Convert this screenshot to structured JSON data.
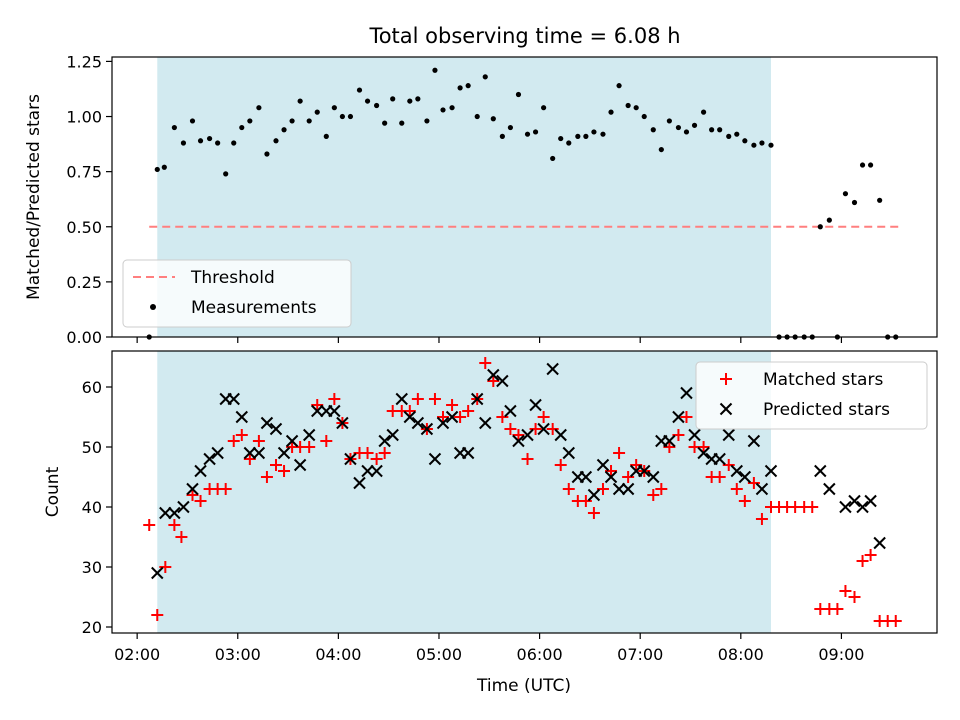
{
  "title": "Total observing time = 6.08 h",
  "colors": {
    "shade": "#a6d5e2",
    "matched": "#ff0000",
    "predicted": "#000000",
    "threshold": "#ff7f7f",
    "measurements": "#000000"
  },
  "x_axis": {
    "label": "Time (UTC)",
    "range_hours": [
      1.75,
      9.95
    ],
    "ticks": [
      {
        "hour": 2,
        "label": "02:00"
      },
      {
        "hour": 3,
        "label": "03:00"
      },
      {
        "hour": 4,
        "label": "04:00"
      },
      {
        "hour": 5,
        "label": "05:00"
      },
      {
        "hour": 6,
        "label": "06:00"
      },
      {
        "hour": 7,
        "label": "07:00"
      },
      {
        "hour": 8,
        "label": "08:00"
      },
      {
        "hour": 9,
        "label": "09:00"
      }
    ]
  },
  "chart_data": [
    {
      "type": "scatter",
      "ylabel": "Matched/Predicted stars",
      "ylim": [
        0,
        1.27
      ],
      "yticks": [
        "0.00",
        "0.25",
        "0.50",
        "0.75",
        "1.00",
        "1.25"
      ],
      "ytick_values": [
        0,
        0.25,
        0.5,
        0.75,
        1.0,
        1.25
      ],
      "observing_window": [
        2.2,
        8.3
      ],
      "threshold": {
        "name": "Threshold",
        "value": 0.5,
        "x_range": [
          2.12,
          9.58
        ]
      },
      "legend": {
        "position": "lower-left",
        "entries": [
          "Threshold",
          "Measurements"
        ]
      },
      "series": [
        {
          "name": "Measurements",
          "points": [
            [
              2.12,
              0.0
            ],
            [
              2.2,
              0.76
            ],
            [
              2.27,
              0.77
            ],
            [
              2.37,
              0.95
            ],
            [
              2.46,
              0.88
            ],
            [
              2.55,
              0.98
            ],
            [
              2.63,
              0.89
            ],
            [
              2.72,
              0.9
            ],
            [
              2.8,
              0.88
            ],
            [
              2.88,
              0.74
            ],
            [
              2.96,
              0.88
            ],
            [
              3.04,
              0.95
            ],
            [
              3.12,
              0.98
            ],
            [
              3.21,
              1.04
            ],
            [
              3.29,
              0.83
            ],
            [
              3.38,
              0.89
            ],
            [
              3.46,
              0.94
            ],
            [
              3.54,
              0.98
            ],
            [
              3.62,
              1.07
            ],
            [
              3.71,
              0.98
            ],
            [
              3.79,
              1.02
            ],
            [
              3.88,
              0.91
            ],
            [
              3.96,
              1.04
            ],
            [
              4.04,
              1.0
            ],
            [
              4.12,
              1.0
            ],
            [
              4.21,
              1.12
            ],
            [
              4.29,
              1.07
            ],
            [
              4.38,
              1.05
            ],
            [
              4.46,
              0.97
            ],
            [
              4.54,
              1.08
            ],
            [
              4.63,
              0.97
            ],
            [
              4.71,
              1.07
            ],
            [
              4.79,
              1.08
            ],
            [
              4.88,
              0.98
            ],
            [
              4.96,
              1.21
            ],
            [
              5.04,
              1.03
            ],
            [
              5.13,
              1.04
            ],
            [
              5.21,
              1.13
            ],
            [
              5.29,
              1.14
            ],
            [
              5.38,
              1.0
            ],
            [
              5.46,
              1.18
            ],
            [
              5.54,
              0.99
            ],
            [
              5.63,
              0.91
            ],
            [
              5.71,
              0.95
            ],
            [
              5.79,
              1.1
            ],
            [
              5.88,
              0.92
            ],
            [
              5.96,
              0.93
            ],
            [
              6.04,
              1.04
            ],
            [
              6.13,
              0.81
            ],
            [
              6.21,
              0.9
            ],
            [
              6.29,
              0.88
            ],
            [
              6.38,
              0.91
            ],
            [
              6.46,
              0.91
            ],
            [
              6.54,
              0.93
            ],
            [
              6.63,
              0.92
            ],
            [
              6.71,
              1.02
            ],
            [
              6.79,
              1.14
            ],
            [
              6.88,
              1.05
            ],
            [
              6.96,
              1.04
            ],
            [
              7.04,
              1.0
            ],
            [
              7.13,
              0.94
            ],
            [
              7.21,
              0.85
            ],
            [
              7.29,
              0.98
            ],
            [
              7.38,
              0.95
            ],
            [
              7.46,
              0.93
            ],
            [
              7.54,
              0.96
            ],
            [
              7.63,
              1.02
            ],
            [
              7.71,
              0.94
            ],
            [
              7.79,
              0.94
            ],
            [
              7.88,
              0.91
            ],
            [
              7.96,
              0.92
            ],
            [
              8.04,
              0.89
            ],
            [
              8.13,
              0.87
            ],
            [
              8.21,
              0.88
            ],
            [
              8.3,
              0.87
            ],
            [
              8.38,
              0.0
            ],
            [
              8.46,
              0.0
            ],
            [
              8.54,
              0.0
            ],
            [
              8.63,
              0.0
            ],
            [
              8.71,
              0.0
            ],
            [
              8.79,
              0.5
            ],
            [
              8.88,
              0.53
            ],
            [
              8.96,
              0.0
            ],
            [
              9.04,
              0.65
            ],
            [
              9.13,
              0.61
            ],
            [
              9.21,
              0.78
            ],
            [
              9.29,
              0.78
            ],
            [
              9.38,
              0.62
            ],
            [
              9.46,
              0.0
            ],
            [
              9.54,
              0.0
            ]
          ]
        }
      ]
    },
    {
      "type": "scatter",
      "ylabel": "Count",
      "ylim": [
        19,
        66
      ],
      "yticks": [
        "20",
        "30",
        "40",
        "50",
        "60"
      ],
      "ytick_values": [
        20,
        30,
        40,
        50,
        60
      ],
      "observing_window": [
        2.2,
        8.3
      ],
      "legend": {
        "position": "upper-right",
        "entries": [
          "Matched stars",
          "Predicted stars"
        ]
      },
      "series": [
        {
          "name": "Matched stars",
          "marker": "+",
          "points": [
            [
              2.12,
              37
            ],
            [
              2.2,
              22
            ],
            [
              2.28,
              30
            ],
            [
              2.37,
              37
            ],
            [
              2.44,
              35
            ],
            [
              2.55,
              42
            ],
            [
              2.63,
              41
            ],
            [
              2.72,
              43
            ],
            [
              2.8,
              43
            ],
            [
              2.88,
              43
            ],
            [
              2.96,
              51
            ],
            [
              3.04,
              52
            ],
            [
              3.12,
              48
            ],
            [
              3.21,
              51
            ],
            [
              3.29,
              45
            ],
            [
              3.38,
              47
            ],
            [
              3.46,
              46
            ],
            [
              3.54,
              50
            ],
            [
              3.62,
              50
            ],
            [
              3.71,
              50
            ],
            [
              3.79,
              57
            ],
            [
              3.88,
              51
            ],
            [
              3.96,
              58
            ],
            [
              4.04,
              54
            ],
            [
              4.12,
              48
            ],
            [
              4.21,
              49
            ],
            [
              4.29,
              49
            ],
            [
              4.38,
              48
            ],
            [
              4.46,
              49
            ],
            [
              4.54,
              56
            ],
            [
              4.63,
              56
            ],
            [
              4.71,
              56
            ],
            [
              4.79,
              58
            ],
            [
              4.88,
              53
            ],
            [
              4.96,
              58
            ],
            [
              5.04,
              55
            ],
            [
              5.13,
              57
            ],
            [
              5.21,
              55
            ],
            [
              5.29,
              56
            ],
            [
              5.38,
              58
            ],
            [
              5.46,
              64
            ],
            [
              5.54,
              61
            ],
            [
              5.63,
              55
            ],
            [
              5.71,
              53
            ],
            [
              5.79,
              52
            ],
            [
              5.88,
              48
            ],
            [
              5.96,
              53
            ],
            [
              6.04,
              55
            ],
            [
              6.13,
              53
            ],
            [
              6.21,
              47
            ],
            [
              6.29,
              43
            ],
            [
              6.38,
              41
            ],
            [
              6.46,
              41
            ],
            [
              6.54,
              39
            ],
            [
              6.63,
              43
            ],
            [
              6.71,
              46
            ],
            [
              6.79,
              49
            ],
            [
              6.88,
              45
            ],
            [
              6.96,
              47
            ],
            [
              7.04,
              46
            ],
            [
              7.13,
              42
            ],
            [
              7.21,
              43
            ],
            [
              7.29,
              50
            ],
            [
              7.38,
              52
            ],
            [
              7.46,
              55
            ],
            [
              7.54,
              50
            ],
            [
              7.63,
              50
            ],
            [
              7.71,
              45
            ],
            [
              7.79,
              45
            ],
            [
              7.88,
              47
            ],
            [
              7.96,
              43
            ],
            [
              8.04,
              41
            ],
            [
              8.13,
              44
            ],
            [
              8.21,
              38
            ],
            [
              8.3,
              40
            ],
            [
              8.38,
              40
            ],
            [
              8.46,
              40
            ],
            [
              8.54,
              40
            ],
            [
              8.63,
              40
            ],
            [
              8.71,
              40
            ],
            [
              8.79,
              23
            ],
            [
              8.88,
              23
            ],
            [
              8.96,
              23
            ],
            [
              9.04,
              26
            ],
            [
              9.13,
              25
            ],
            [
              9.21,
              31
            ],
            [
              9.29,
              32
            ],
            [
              9.38,
              21
            ],
            [
              9.46,
              21
            ],
            [
              9.54,
              21
            ]
          ]
        },
        {
          "name": "Predicted stars",
          "marker": "x",
          "points": [
            [
              2.2,
              29
            ],
            [
              2.28,
              39
            ],
            [
              2.37,
              39
            ],
            [
              2.46,
              40
            ],
            [
              2.55,
              43
            ],
            [
              2.63,
              46
            ],
            [
              2.72,
              48
            ],
            [
              2.8,
              49
            ],
            [
              2.88,
              58
            ],
            [
              2.96,
              58
            ],
            [
              3.04,
              55
            ],
            [
              3.12,
              49
            ],
            [
              3.21,
              49
            ],
            [
              3.29,
              54
            ],
            [
              3.38,
              53
            ],
            [
              3.46,
              49
            ],
            [
              3.54,
              51
            ],
            [
              3.62,
              47
            ],
            [
              3.71,
              52
            ],
            [
              3.79,
              56
            ],
            [
              3.88,
              56
            ],
            [
              3.96,
              56
            ],
            [
              4.04,
              54
            ],
            [
              4.12,
              48
            ],
            [
              4.21,
              44
            ],
            [
              4.29,
              46
            ],
            [
              4.38,
              46
            ],
            [
              4.46,
              51
            ],
            [
              4.54,
              52
            ],
            [
              4.63,
              58
            ],
            [
              4.71,
              55
            ],
            [
              4.79,
              54
            ],
            [
              4.88,
              53
            ],
            [
              4.96,
              48
            ],
            [
              5.04,
              54
            ],
            [
              5.13,
              55
            ],
            [
              5.21,
              49
            ],
            [
              5.29,
              49
            ],
            [
              5.38,
              58
            ],
            [
              5.46,
              54
            ],
            [
              5.54,
              62
            ],
            [
              5.63,
              61
            ],
            [
              5.71,
              56
            ],
            [
              5.79,
              51
            ],
            [
              5.88,
              52
            ],
            [
              5.96,
              57
            ],
            [
              6.04,
              53
            ],
            [
              6.13,
              63
            ],
            [
              6.21,
              52
            ],
            [
              6.29,
              49
            ],
            [
              6.38,
              45
            ],
            [
              6.46,
              45
            ],
            [
              6.54,
              42
            ],
            [
              6.63,
              47
            ],
            [
              6.71,
              45
            ],
            [
              6.79,
              43
            ],
            [
              6.88,
              43
            ],
            [
              6.96,
              46
            ],
            [
              7.04,
              46
            ],
            [
              7.13,
              45
            ],
            [
              7.21,
              51
            ],
            [
              7.29,
              51
            ],
            [
              7.38,
              55
            ],
            [
              7.46,
              59
            ],
            [
              7.54,
              52
            ],
            [
              7.63,
              49
            ],
            [
              7.71,
              48
            ],
            [
              7.79,
              48
            ],
            [
              7.88,
              52
            ],
            [
              7.96,
              46
            ],
            [
              8.04,
              45
            ],
            [
              8.13,
              51
            ],
            [
              8.21,
              43
            ],
            [
              8.3,
              46
            ],
            [
              8.79,
              46
            ],
            [
              8.88,
              43
            ],
            [
              9.04,
              40
            ],
            [
              9.13,
              41
            ],
            [
              9.21,
              40
            ],
            [
              9.29,
              41
            ],
            [
              9.38,
              34
            ]
          ]
        }
      ]
    }
  ]
}
